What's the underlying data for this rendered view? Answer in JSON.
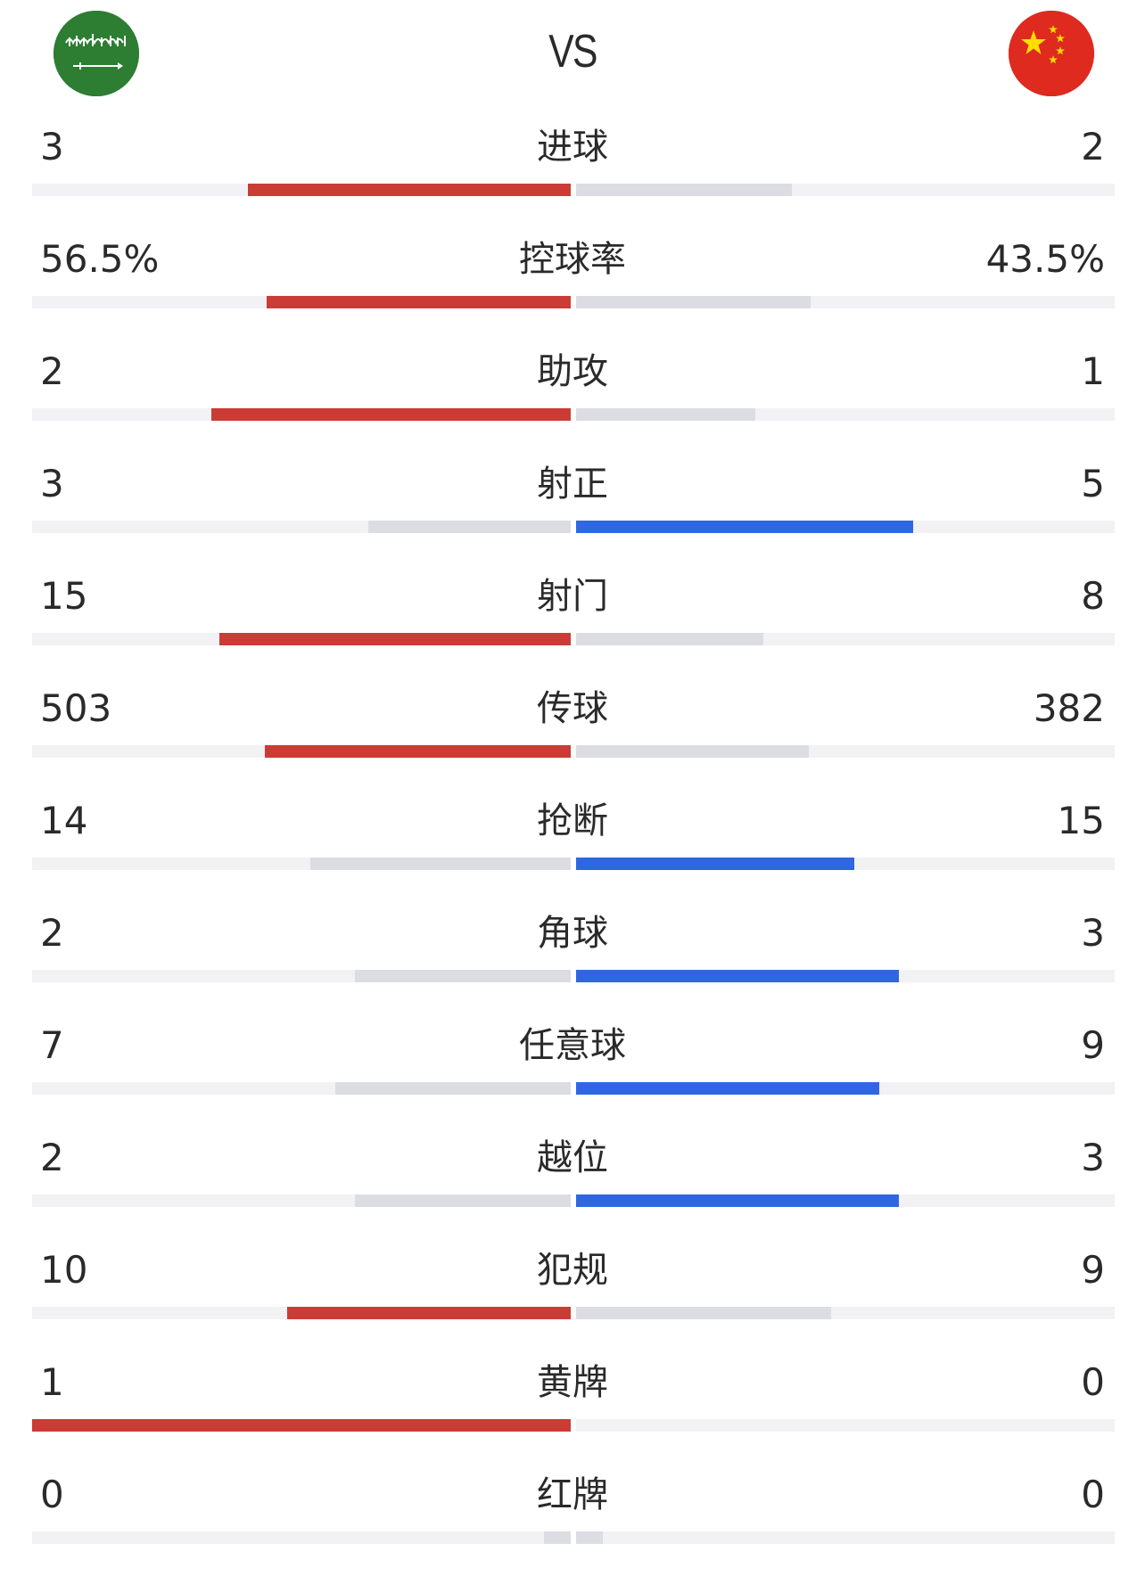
{
  "header": {
    "vs_label": "VS",
    "home_flag_icon": "saudi-arabia-flag-icon",
    "away_flag_icon": "china-flag-icon"
  },
  "colors": {
    "home_bar": "#cb3c35",
    "away_bar": "#2f67e3",
    "losing_bar": "#dcdde2",
    "track": "#f2f2f4"
  },
  "stats": [
    {
      "label": "进球",
      "home": "3",
      "away": "2",
      "home_ratio": 0.6,
      "away_ratio": 0.4
    },
    {
      "label": "控球率",
      "home": "56.5%",
      "away": "43.5%",
      "home_ratio": 0.565,
      "away_ratio": 0.435
    },
    {
      "label": "助攻",
      "home": "2",
      "away": "1",
      "home_ratio": 0.667,
      "away_ratio": 0.333
    },
    {
      "label": "射正",
      "home": "3",
      "away": "5",
      "home_ratio": 0.375,
      "away_ratio": 0.625
    },
    {
      "label": "射门",
      "home": "15",
      "away": "8",
      "home_ratio": 0.652,
      "away_ratio": 0.348
    },
    {
      "label": "传球",
      "home": "503",
      "away": "382",
      "home_ratio": 0.568,
      "away_ratio": 0.432
    },
    {
      "label": "抢断",
      "home": "14",
      "away": "15",
      "home_ratio": 0.483,
      "away_ratio": 0.517
    },
    {
      "label": "角球",
      "home": "2",
      "away": "3",
      "home_ratio": 0.4,
      "away_ratio": 0.6
    },
    {
      "label": "任意球",
      "home": "7",
      "away": "9",
      "home_ratio": 0.4375,
      "away_ratio": 0.5625
    },
    {
      "label": "越位",
      "home": "2",
      "away": "3",
      "home_ratio": 0.4,
      "away_ratio": 0.6
    },
    {
      "label": "犯规",
      "home": "10",
      "away": "9",
      "home_ratio": 0.526,
      "away_ratio": 0.474
    },
    {
      "label": "黄牌",
      "home": "1",
      "away": "0",
      "home_ratio": 1.0,
      "away_ratio": 0.0
    },
    {
      "label": "红牌",
      "home": "0",
      "away": "0",
      "home_ratio": 0.05,
      "away_ratio": 0.05
    }
  ]
}
